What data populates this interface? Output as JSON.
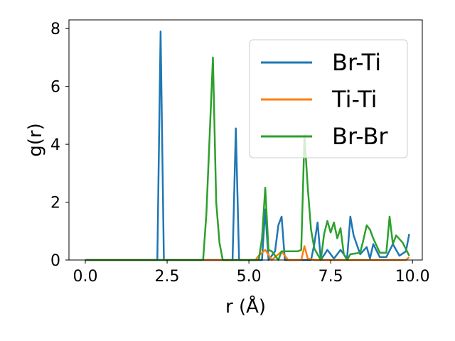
{
  "chart_data": {
    "type": "line",
    "xlabel": "r (Å)",
    "ylabel": "g(r)",
    "xlim": [
      -0.5,
      10.3
    ],
    "ylim": [
      0,
      8.3
    ],
    "xticks": [
      0.0,
      2.5,
      5.0,
      7.5,
      10.0
    ],
    "xtick_labels": [
      "0.0",
      "2.5",
      "5.0",
      "7.5",
      "10.0"
    ],
    "yticks": [
      0,
      2,
      4,
      6,
      8
    ],
    "ytick_labels": [
      "0",
      "2",
      "4",
      "6",
      "8"
    ],
    "grid": false,
    "legend_position": "upper-right",
    "series": [
      {
        "name": "Br-Ti",
        "color": "#1f77b4",
        "x": [
          0.0,
          2.2,
          2.3,
          2.4,
          2.5,
          4.0,
          4.5,
          4.6,
          4.7,
          5.0,
          5.4,
          5.5,
          5.6,
          5.8,
          5.9,
          6.0,
          6.1,
          6.9,
          7.0,
          7.1,
          7.2,
          7.4,
          7.6,
          7.8,
          8.0,
          8.1,
          8.2,
          8.4,
          8.6,
          8.7,
          8.8,
          9.0,
          9.2,
          9.4,
          9.6,
          9.8,
          9.9
        ],
        "y": [
          0,
          0,
          7.9,
          0,
          0,
          0,
          0,
          4.55,
          0,
          0,
          0,
          1.75,
          0,
          0.3,
          1.2,
          1.5,
          0,
          0,
          0.55,
          1.3,
          0,
          0.35,
          0.05,
          0.35,
          0.05,
          1.5,
          0.85,
          0.2,
          0.45,
          0.05,
          0.55,
          0.1,
          0.1,
          0.55,
          0.15,
          0.3,
          0.9
        ]
      },
      {
        "name": "Ti-Ti",
        "color": "#ff7f0e",
        "x": [
          0.0,
          5.2,
          5.3,
          5.5,
          5.7,
          6.0,
          6.2,
          6.6,
          6.7,
          6.8,
          7.0,
          9.8,
          9.9
        ],
        "y": [
          0,
          0,
          0.15,
          0.35,
          0,
          0.3,
          0,
          0,
          0.48,
          0.05,
          0,
          0,
          0.1
        ]
      },
      {
        "name": "Br-Br",
        "color": "#2ca02c",
        "x": [
          0.0,
          3.6,
          3.7,
          3.9,
          4.0,
          4.1,
          4.2,
          5.3,
          5.4,
          5.5,
          5.6,
          5.7,
          5.9,
          6.0,
          6.1,
          6.5,
          6.6,
          6.7,
          6.8,
          6.9,
          7.0,
          7.2,
          7.3,
          7.4,
          7.5,
          7.6,
          7.7,
          7.8,
          7.9,
          8.0,
          8.1,
          8.4,
          8.5,
          8.6,
          8.7,
          8.8,
          9.0,
          9.2,
          9.3,
          9.4,
          9.5,
          9.7,
          9.9
        ],
        "y": [
          0,
          0,
          1.6,
          7.0,
          2.0,
          0.6,
          0,
          0,
          0.75,
          2.5,
          0.35,
          0.3,
          0,
          0.3,
          0.3,
          0.3,
          0.35,
          4.3,
          2.5,
          1.05,
          0.4,
          0,
          0.9,
          1.35,
          0.95,
          1.3,
          0.75,
          1.1,
          0.2,
          0,
          0.2,
          0.25,
          0.7,
          1.2,
          1.05,
          0.75,
          0.25,
          0.25,
          1.5,
          0.55,
          0.85,
          0.6,
          0.15
        ]
      }
    ]
  }
}
